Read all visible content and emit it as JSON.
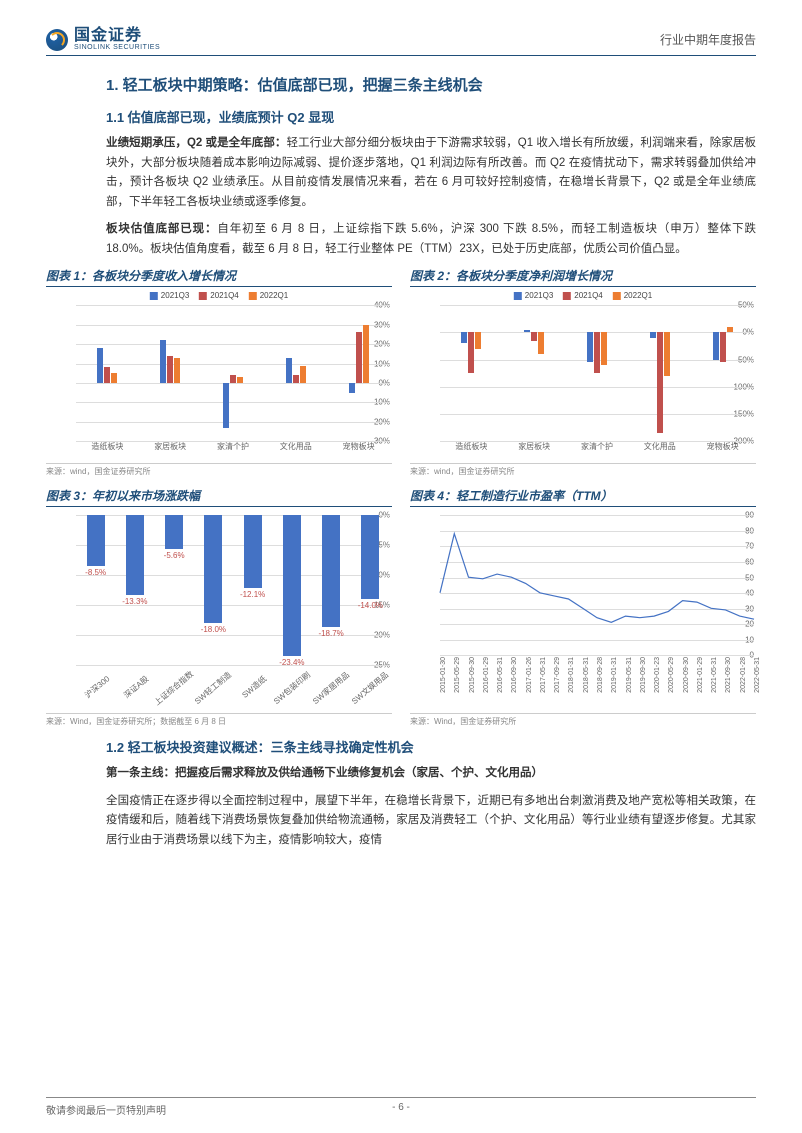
{
  "header": {
    "logo_cn": "国金证券",
    "logo_en": "SINOLINK SECURITIES",
    "right": "行业中期年度报告"
  },
  "h1": "1. 轻工板块中期策略：估值底部已现，把握三条主线机会",
  "h2a": "1.1 估值底部已现，业绩底预计 Q2 显现",
  "p1": {
    "b": "业绩短期承压，Q2 或是全年底部：",
    "t": "轻工行业大部分细分板块由于下游需求较弱，Q1 收入增长有所放缓，利润端来看，除家居板块外，大部分板块随着成本影响边际减弱、提价逐步落地，Q1 利润边际有所改善。而 Q2 在疫情扰动下，需求转弱叠加供给冲击，预计各板块 Q2 业绩承压。从目前疫情发展情况来看，若在 6 月可较好控制疫情，在稳增长背景下，Q2 或是全年业绩底部，下半年轻工各板块业绩或逐季修复。"
  },
  "p2": {
    "b": "板块估值底部已现：",
    "t": "自年初至 6 月 8 日，上证综指下跌 5.6%，沪深 300 下跌 8.5%，而轻工制造板块（申万）整体下跌 18.0%。板块估值角度看，截至 6 月 8 日，轻工行业整体 PE（TTM）23X，已处于历史底部，优质公司价值凸显。"
  },
  "chart1": {
    "title": "图表 1：各板块分季度收入增长情况",
    "type": "bar",
    "legend": [
      "2021Q3",
      "2021Q4",
      "2022Q1"
    ],
    "colors": [
      "#4472c4",
      "#c0504d",
      "#ed7d31"
    ],
    "cats": [
      "造纸板块",
      "家居板块",
      "家清个护",
      "文化用品",
      "宠物板块"
    ],
    "series": [
      [
        18,
        8,
        5
      ],
      [
        22,
        14,
        13
      ],
      [
        -23,
        4,
        3
      ],
      [
        13,
        4,
        9
      ],
      [
        -5,
        26,
        30
      ]
    ],
    "ylim": [
      -30,
      40
    ],
    "ytick_step": 10,
    "grid_color": "#ddd",
    "src": "来源：wind，国金证券研究所"
  },
  "chart2": {
    "title": "图表 2：各板块分季度净利润增长情况",
    "type": "bar",
    "legend": [
      "2021Q3",
      "2021Q4",
      "2022Q1"
    ],
    "colors": [
      "#4472c4",
      "#c0504d",
      "#ed7d31"
    ],
    "cats": [
      "造纸板块",
      "家居板块",
      "家清个护",
      "文化用品",
      "宠物板块"
    ],
    "series": [
      [
        -20,
        -75,
        -30
      ],
      [
        5,
        -15,
        -40
      ],
      [
        -55,
        -75,
        -60
      ],
      [
        -10,
        -185,
        -80
      ],
      [
        -50,
        -55,
        10
      ]
    ],
    "ylim": [
      -200,
      50
    ],
    "ytick_step": 50,
    "grid_color": "#ddd",
    "src": "来源：wind，国金证券研究所"
  },
  "chart3": {
    "title": "图表 3：年初以来市场涨跌幅",
    "type": "bar_neg",
    "color": "#4472c4",
    "label_color": "#c0504d",
    "cats": [
      "沪深300",
      "深证A股",
      "上证综合指数",
      "SW轻工制造",
      "SW造纸",
      "SW包装印刷",
      "SW家居用品",
      "SW文娱用品"
    ],
    "values": [
      -8.5,
      -13.3,
      -5.6,
      -18.0,
      -12.1,
      -23.4,
      -18.7,
      -14.0
    ],
    "labels": [
      "-8.5%",
      "-13.3%",
      "-5.6%",
      "-18.0%",
      "-12.1%",
      "-23.4%",
      "-18.7%",
      "-14.0%"
    ],
    "ylim": [
      -25,
      0
    ],
    "ytick_step": 5,
    "grid_color": "#ddd",
    "src": "来源：Wind，国金证券研究所；数据截至 6 月 8 日"
  },
  "chart4": {
    "title": "图表 4：轻工制造行业市盈率（TTM）",
    "type": "line",
    "color": "#4472c4",
    "ylim": [
      0,
      90
    ],
    "ytick_step": 10,
    "grid_color": "#ddd",
    "xticks": [
      "2015-01-30",
      "2015-05-29",
      "2015-09-30",
      "2016-01-29",
      "2016-05-31",
      "2016-09-30",
      "2017-01-26",
      "2017-05-31",
      "2017-09-29",
      "2018-01-31",
      "2018-05-31",
      "2018-09-28",
      "2019-01-31",
      "2019-05-31",
      "2019-09-30",
      "2020-01-23",
      "2020-05-29",
      "2020-09-30",
      "2021-01-29",
      "2021-05-31",
      "2021-09-30",
      "2022-01-28",
      "2022-05-31"
    ],
    "values": [
      40,
      78,
      50,
      49,
      52,
      50,
      46,
      40,
      38,
      36,
      30,
      24,
      21,
      25,
      24,
      25,
      28,
      35,
      34,
      30,
      29,
      25,
      23
    ],
    "src": "来源：Wind，国金证券研究所"
  },
  "h2b": "1.2 轻工板块投资建议概述：三条主线寻找确定性机会",
  "p3": {
    "b": "第一条主线：把握疫后需求释放及供给通畅下业绩修复机会（家居、个护、文化用品）",
    "t": ""
  },
  "p4": "全国疫情正在逐步得以全面控制过程中，展望下半年，在稳增长背景下，近期已有多地出台刺激消费及地产宽松等相关政策，在疫情缓和后，随着线下消费场景恢复叠加供给物流通畅，家居及消费轻工（个护、文化用品）等行业业绩有望逐步修复。尤其家居行业由于消费场景以线下为主，疫情影响较大，疫情",
  "footer": {
    "left": "敬请参阅最后一页特别声明",
    "page": "- 6 -"
  }
}
